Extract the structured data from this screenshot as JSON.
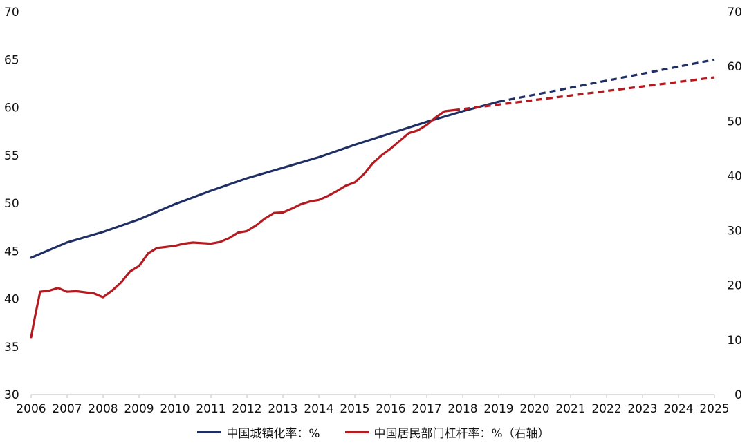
{
  "colors": {
    "urban": "#1f2f63",
    "leverage": "#b31b21"
  },
  "legend": {
    "urban": "中国城镇化率：%",
    "leverage": "中国居民部门杠杆率：%（右轴）"
  },
  "chart_data": {
    "type": "line",
    "title": "",
    "xlabel": "",
    "ylabel": "",
    "xlim": [
      2006,
      2025
    ],
    "x_ticks": [
      "2006",
      "2007",
      "2008",
      "2009",
      "2010",
      "2011",
      "2012",
      "2013",
      "2014",
      "2015",
      "2016",
      "2017",
      "2018",
      "2019",
      "2020",
      "2021",
      "2022",
      "2023",
      "2024",
      "2025"
    ],
    "y_left": {
      "lim": [
        30,
        70
      ],
      "ticks": [
        "30",
        "35",
        "40",
        "45",
        "50",
        "55",
        "60",
        "65",
        "70"
      ]
    },
    "y_right": {
      "lim": [
        0,
        70
      ],
      "ticks": [
        "0",
        "10",
        "20",
        "30",
        "40",
        "50",
        "60",
        "70"
      ]
    },
    "grid": false,
    "legend_position": "bottom",
    "series": [
      {
        "name": "中国城镇化率：%",
        "axis": "left",
        "style": "solid",
        "points": [
          [
            2006,
            44.3
          ],
          [
            2007,
            45.9
          ],
          [
            2008,
            47.0
          ],
          [
            2009,
            48.3
          ],
          [
            2010,
            49.9
          ],
          [
            2011,
            51.3
          ],
          [
            2012,
            52.6
          ],
          [
            2013,
            53.7
          ],
          [
            2014,
            54.8
          ],
          [
            2015,
            56.1
          ],
          [
            2016,
            57.3
          ],
          [
            2017,
            58.5
          ],
          [
            2018,
            59.6
          ],
          [
            2019,
            60.6
          ]
        ]
      },
      {
        "name": "",
        "axis": "left",
        "style": "dashed",
        "points": [
          [
            2019,
            60.6
          ],
          [
            2025,
            65.0
          ]
        ]
      },
      {
        "name": "中国居民部门杠杆率：%（右轴）",
        "axis": "right",
        "style": "solid",
        "points": [
          [
            2006,
            10.5
          ],
          [
            2006.1,
            14
          ],
          [
            2006.25,
            18.8
          ],
          [
            2006.5,
            19.0
          ],
          [
            2006.75,
            19.5
          ],
          [
            2007,
            18.8
          ],
          [
            2007.25,
            18.9
          ],
          [
            2007.5,
            18.7
          ],
          [
            2007.75,
            18.5
          ],
          [
            2008,
            17.8
          ],
          [
            2008.25,
            19.0
          ],
          [
            2008.5,
            20.5
          ],
          [
            2008.75,
            22.5
          ],
          [
            2009,
            23.5
          ],
          [
            2009.25,
            25.8
          ],
          [
            2009.5,
            26.8
          ],
          [
            2009.75,
            27.0
          ],
          [
            2010,
            27.2
          ],
          [
            2010.25,
            27.6
          ],
          [
            2010.5,
            27.8
          ],
          [
            2010.75,
            27.7
          ],
          [
            2011,
            27.6
          ],
          [
            2011.25,
            27.9
          ],
          [
            2011.5,
            28.6
          ],
          [
            2011.75,
            29.6
          ],
          [
            2012,
            29.9
          ],
          [
            2012.25,
            30.9
          ],
          [
            2012.5,
            32.2
          ],
          [
            2012.75,
            33.2
          ],
          [
            2013,
            33.3
          ],
          [
            2013.25,
            34.0
          ],
          [
            2013.5,
            34.8
          ],
          [
            2013.75,
            35.3
          ],
          [
            2014,
            35.6
          ],
          [
            2014.25,
            36.3
          ],
          [
            2014.5,
            37.2
          ],
          [
            2014.75,
            38.2
          ],
          [
            2015,
            38.8
          ],
          [
            2015.25,
            40.3
          ],
          [
            2015.5,
            42.3
          ],
          [
            2015.75,
            43.8
          ],
          [
            2016,
            45.0
          ],
          [
            2016.25,
            46.4
          ],
          [
            2016.5,
            47.8
          ],
          [
            2016.75,
            48.3
          ],
          [
            2017,
            49.3
          ],
          [
            2017.25,
            50.7
          ],
          [
            2017.5,
            51.8
          ],
          [
            2017.75,
            52.0
          ]
        ]
      },
      {
        "name": "",
        "axis": "right",
        "style": "dashed",
        "points": [
          [
            2017.75,
            52.0
          ],
          [
            2025,
            58.0
          ]
        ]
      }
    ]
  }
}
